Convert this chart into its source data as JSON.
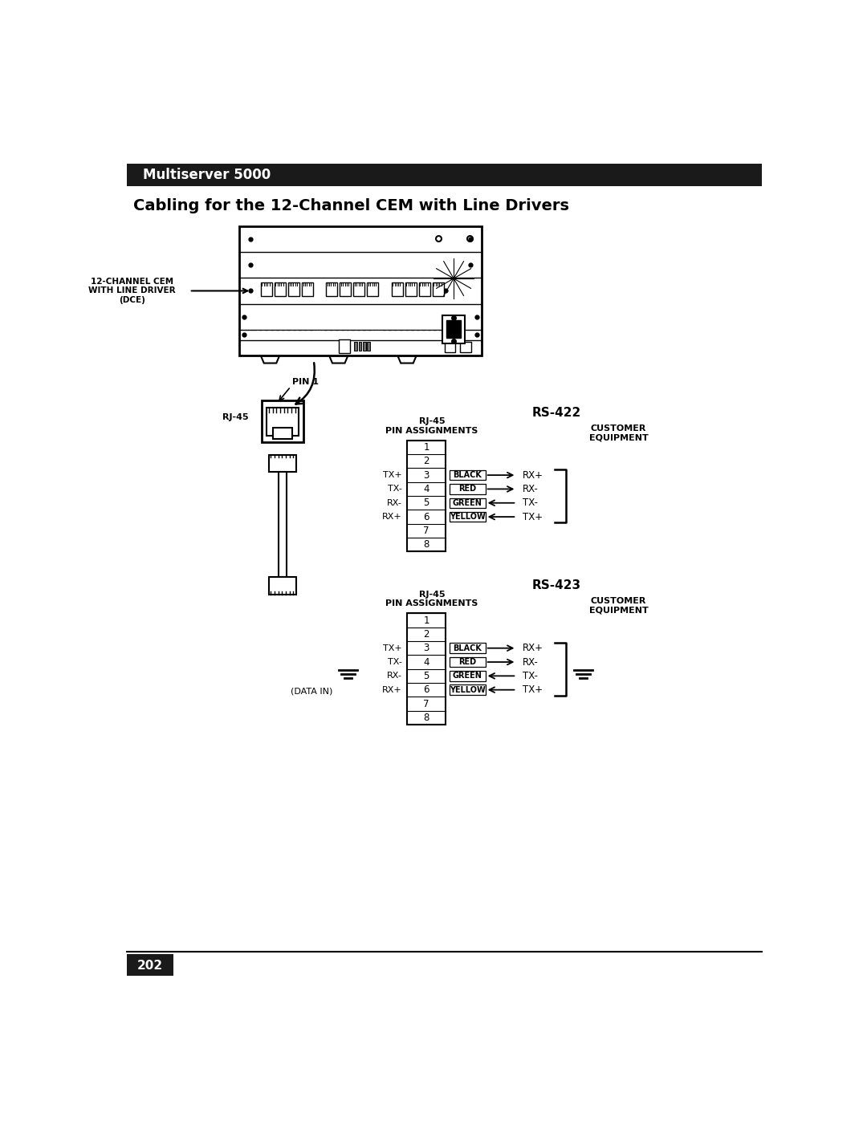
{
  "title_bar_text": "Multiserver 5000",
  "title_bar_color": "#1a1a1a",
  "title_bar_text_color": "#ffffff",
  "section_title": "Cabling for the 12-Channel CEM with Line Drivers",
  "page_number": "202",
  "bg_color": "#ffffff",
  "rs422_label": "RS-422",
  "rs423_label": "RS-423",
  "pin_labels": [
    "1",
    "2",
    "3",
    "4",
    "5",
    "6",
    "7",
    "8"
  ],
  "signal_labels": [
    "TX+",
    "TX-",
    "RX-",
    "RX+"
  ],
  "signal_pins": [
    3,
    4,
    5,
    6
  ],
  "wire_colors": [
    "BLACK",
    "RED",
    "GREEN",
    "YELLOW"
  ],
  "arrows": [
    "right",
    "right",
    "left",
    "left"
  ],
  "customer_labels": [
    "RX+",
    "RX-",
    "TX-",
    "TX+"
  ],
  "device_label": "12-CHANNEL CEM\nWITH LINE DRIVER\n(DCE)",
  "pin1_label": "PIN 1",
  "rj45_connector_label": "RJ-45",
  "data_in_label": "(DATA IN)"
}
